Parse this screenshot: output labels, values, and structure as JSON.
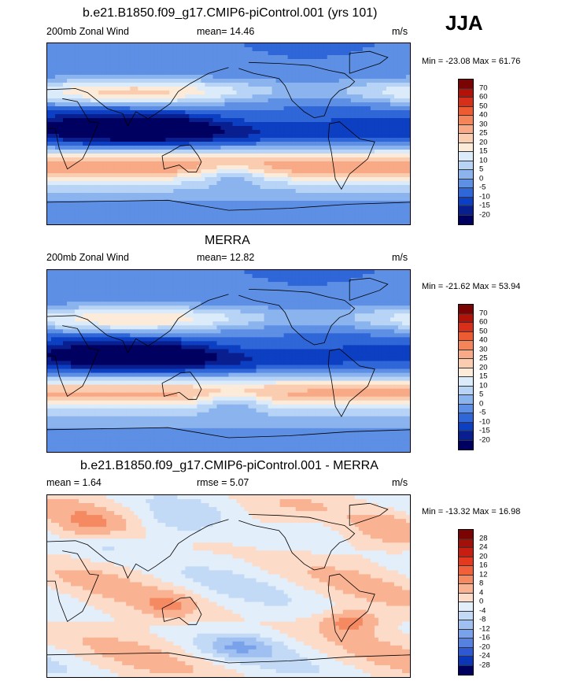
{
  "season_label": "JJA",
  "panels": [
    {
      "title": "b.e21.B1850.f09_g17.CMIP6-piControl.001 (yrs 101)",
      "left_label": "200mb Zonal Wind",
      "center_label": "mean=  14.46",
      "unit": "m/s",
      "minmax": "Min = -23.08 Max =  61.76",
      "map_type": "zonal-wind-model",
      "colorbar": {
        "labels": [
          "70",
          "60",
          "50",
          "40",
          "30",
          "25",
          "20",
          "15",
          "10",
          "5",
          "0",
          "-5",
          "-10",
          "-15",
          "-20"
        ],
        "colors": [
          "#7a0403",
          "#b1120a",
          "#d6301a",
          "#ec5b32",
          "#f4845a",
          "#f8a986",
          "#fbcdb0",
          "#fdebd9",
          "#dcebfa",
          "#b7d3f5",
          "#8bb4ee",
          "#5d8fe5",
          "#2f66d8",
          "#0c3fc2",
          "#0a1f8f",
          "#000060"
        ]
      }
    },
    {
      "title": "MERRA",
      "left_label": "200mb Zonal Wind",
      "center_label": "mean=  12.82",
      "unit": "m/s",
      "minmax": "Min = -21.62 Max =  53.94",
      "map_type": "zonal-wind-obs",
      "colorbar": {
        "labels": [
          "70",
          "60",
          "50",
          "40",
          "30",
          "25",
          "20",
          "15",
          "10",
          "5",
          "0",
          "-5",
          "-10",
          "-15",
          "-20"
        ],
        "colors": [
          "#7a0403",
          "#b1120a",
          "#d6301a",
          "#ec5b32",
          "#f4845a",
          "#f8a986",
          "#fbcdb0",
          "#fdebd9",
          "#dcebfa",
          "#b7d3f5",
          "#8bb4ee",
          "#5d8fe5",
          "#2f66d8",
          "#0c3fc2",
          "#0a1f8f",
          "#000060"
        ]
      }
    },
    {
      "title": "b.e21.B1850.f09_g17.CMIP6-piControl.001 - MERRA",
      "left_label": "mean =   1.64",
      "center_label": "rmse =   5.07",
      "unit": "m/s",
      "minmax": "Min = -13.32 Max =  16.98",
      "map_type": "difference",
      "colorbar": {
        "labels": [
          "28",
          "24",
          "20",
          "16",
          "12",
          "8",
          "4",
          "0",
          "-4",
          "-8",
          "-12",
          "-16",
          "-20",
          "-24",
          "-28"
        ],
        "colors": [
          "#7a0403",
          "#a3100a",
          "#c81e12",
          "#e33a1f",
          "#f0603a",
          "#f58a62",
          "#f9b393",
          "#fcdcc8",
          "#e3eefb",
          "#c3daf6",
          "#9fc0f0",
          "#7aa2ea",
          "#5581e1",
          "#2d5ad4",
          "#0c36b8",
          "#000060"
        ]
      }
    }
  ]
}
